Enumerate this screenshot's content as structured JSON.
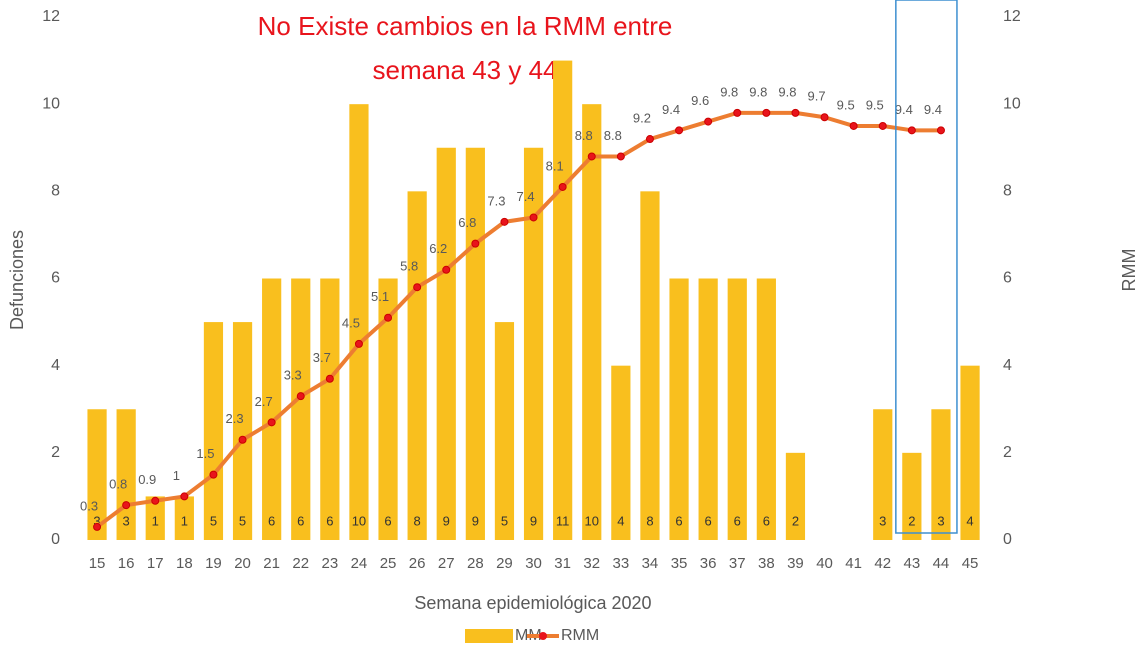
{
  "chart_data": {
    "type": "bar_line",
    "annotation": [
      "No Existe cambios en la  RMM  entre",
      "semana 43 y 44"
    ],
    "y_label": "Defunciones",
    "y2_label": "RMM",
    "x_label": "Semana epidemiológica 2020",
    "categories": [
      15,
      16,
      17,
      18,
      19,
      20,
      21,
      22,
      23,
      24,
      25,
      26,
      27,
      28,
      29,
      30,
      31,
      32,
      33,
      34,
      35,
      36,
      37,
      38,
      39,
      40,
      41,
      42,
      43,
      44,
      45
    ],
    "series": [
      {
        "name": "MM",
        "type": "bar",
        "color": "#f9bf1e",
        "values": [
          3,
          3,
          1,
          1,
          5,
          5,
          6,
          6,
          6,
          10,
          6,
          8,
          9,
          9,
          5,
          9,
          11,
          10,
          4,
          8,
          6,
          6,
          6,
          6,
          2,
          null,
          null,
          3,
          2,
          3,
          4
        ]
      },
      {
        "name": "RMM",
        "type": "line",
        "axis": "y2",
        "color": "#ed7d31",
        "marker_color": "#e8141c",
        "values": [
          0.3,
          0.8,
          0.9,
          1,
          1.5,
          2.3,
          2.7,
          3.3,
          3.7,
          4.5,
          5.1,
          5.8,
          6.2,
          6.8,
          7.3,
          7.4,
          8.1,
          8.8,
          8.8,
          9.2,
          9.4,
          9.6,
          9.8,
          9.8,
          9.8,
          9.7,
          9.5,
          9.5,
          9.4,
          9.4,
          null
        ]
      }
    ],
    "ylim": [
      0,
      12
    ],
    "yticks": [
      0,
      2,
      4,
      6,
      8,
      10,
      12
    ],
    "y2lim": [
      0,
      12
    ],
    "y2ticks": [
      0,
      2,
      4,
      6,
      8,
      10,
      12
    ],
    "grid": false
  }
}
